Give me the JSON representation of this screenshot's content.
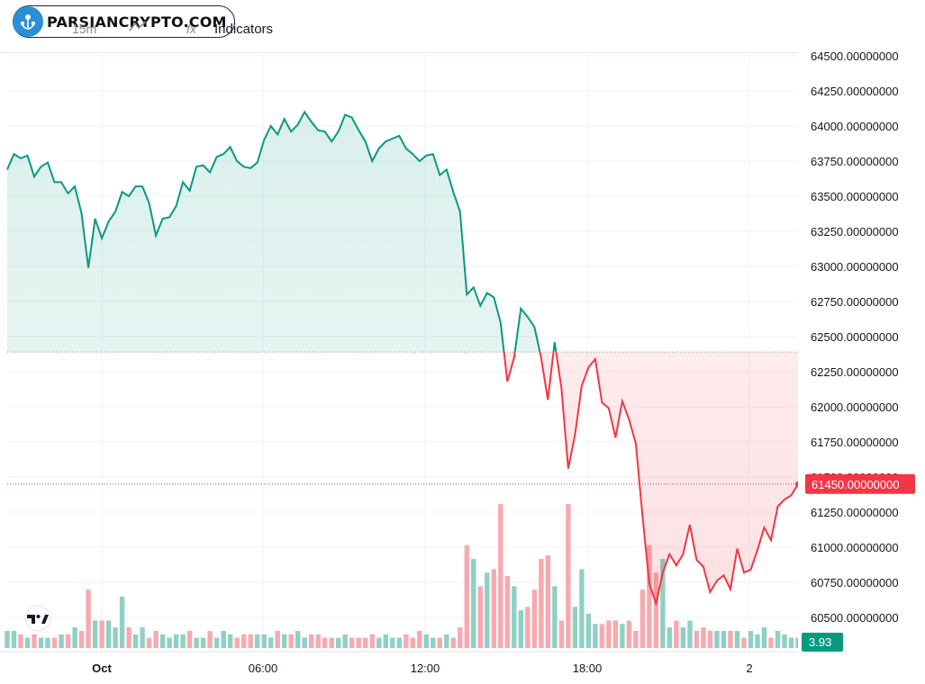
{
  "toolbar": {
    "brand_logo_text": "PARSIANCRYPTO.COM",
    "interval_label": "15m",
    "indicators_label": "Indicators"
  },
  "colors": {
    "up": "#089981",
    "down": "#f23645",
    "up_volume": "#8fd0c4",
    "down_volume": "#f7a9b0",
    "grid": "#f0f3fa"
  },
  "chart_data": {
    "type": "area",
    "price_axis": {
      "ticks": [
        "64500.00000000",
        "64250.00000000",
        "64000.00000000",
        "63750.00000000",
        "63500.00000000",
        "63250.00000000",
        "63000.00000000",
        "62750.00000000",
        "62500.00000000",
        "62250.00000000",
        "62000.00000000",
        "61750.00000000",
        "61500.00000000",
        "61250.00000000",
        "61000.00000000",
        "60750.00000000",
        "60500.00000000"
      ],
      "ylim": [
        60320,
        64550
      ]
    },
    "time_axis": {
      "ticks": [
        "Oct",
        "06:00",
        "12:00",
        "18:00",
        "2"
      ]
    },
    "baseline_price": 62390,
    "last_price_label": "61450.00000000",
    "last_price": 61450,
    "volume_label": "3.93",
    "price_series": [
      63690,
      63800,
      63770,
      63790,
      63640,
      63710,
      63740,
      63600,
      63600,
      63520,
      63570,
      63380,
      62990,
      63340,
      63200,
      63320,
      63390,
      63530,
      63500,
      63570,
      63570,
      63450,
      63220,
      63340,
      63350,
      63430,
      63600,
      63540,
      63710,
      63720,
      63670,
      63780,
      63800,
      63850,
      63750,
      63710,
      63700,
      63740,
      63900,
      64000,
      63940,
      64050,
      63960,
      64010,
      64100,
      64030,
      63970,
      63960,
      63890,
      63960,
      64080,
      64060,
      63970,
      63890,
      63750,
      63840,
      63890,
      63910,
      63930,
      63840,
      63800,
      63750,
      63790,
      63800,
      63650,
      63690,
      63530,
      63390,
      62800,
      62850,
      62720,
      62810,
      62780,
      62600,
      62180,
      62350,
      62700,
      62640,
      62570,
      62350,
      62050,
      62460,
      62130,
      61560,
      61800,
      62150,
      62280,
      62340,
      62030,
      61990,
      61780,
      62040,
      61910,
      61740,
      61220,
      60740,
      60600,
      60820,
      60950,
      60870,
      60950,
      61160,
      60910,
      60860,
      60680,
      60760,
      60800,
      60700,
      60990,
      60820,
      60840,
      60980,
      61140,
      61050,
      61290,
      61340,
      61370,
      61450
    ],
    "volume_series": [
      5,
      5,
      4,
      3,
      4,
      3,
      3,
      3,
      4,
      4,
      6,
      5,
      17,
      8,
      8,
      8,
      6,
      15,
      6,
      4,
      6,
      3,
      5,
      4,
      3,
      4,
      4,
      5,
      3,
      3,
      5,
      3,
      5,
      4,
      3,
      4,
      4,
      4,
      4,
      3,
      5,
      4,
      4,
      5,
      3,
      4,
      4,
      3,
      3,
      3,
      4,
      3,
      3,
      3,
      4,
      3,
      4,
      3,
      3,
      4,
      3,
      5,
      4,
      3,
      3,
      4,
      3,
      6,
      30,
      26,
      18,
      22,
      23,
      42,
      21,
      18,
      11,
      12,
      17,
      26,
      27,
      18,
      8,
      42,
      12,
      23,
      10,
      7,
      7,
      8,
      8,
      7,
      8,
      5,
      17,
      30,
      22,
      26,
      6,
      8,
      6,
      8,
      5,
      6,
      5,
      5,
      5,
      5,
      5,
      3,
      5,
      4,
      6,
      3,
      5,
      4,
      3,
      3
    ]
  }
}
